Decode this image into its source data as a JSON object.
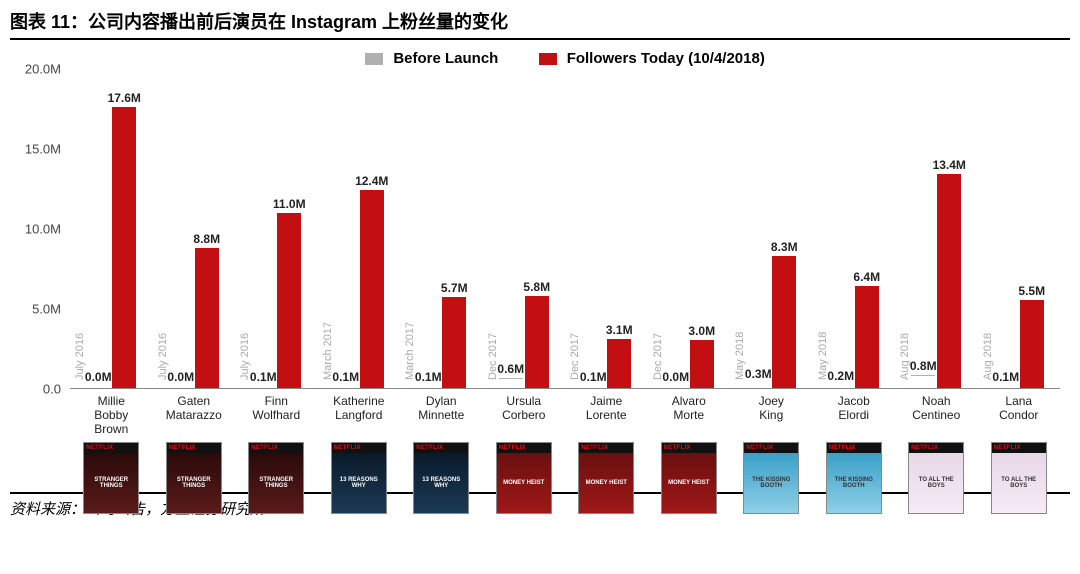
{
  "title": "图表 11：公司内容播出前后演员在 Instagram 上粉丝量的变化",
  "source": "资料来源：公司公告，方正证券研究所",
  "chart": {
    "type": "bar",
    "legend": {
      "before": {
        "label": "Before Launch",
        "color": "#b0b0b0"
      },
      "after": {
        "label": "Followers Today (10/4/2018)",
        "color": "#c40f12"
      }
    },
    "y_axis": {
      "ticks": [
        "0.0",
        "5.0M",
        "10.0M",
        "15.0M",
        "20.0M"
      ],
      "max": 20.0
    },
    "font": {
      "legend_size": 15,
      "tick_size": 13,
      "value_size": 12,
      "xlabel_size": 12
    },
    "background_color": "#ffffff",
    "series": [
      {
        "name": "Millie Bobby Brown",
        "date": "July 2016",
        "before": 0.0,
        "after": 17.6,
        "before_label": "0.0M",
        "after_label": "17.6M",
        "show": "Stranger Things",
        "poster_bg": "linear-gradient(#2b0a0a,#5a1a1a)"
      },
      {
        "name": "Gaten Matarazzo",
        "date": "July 2016",
        "before": 0.0,
        "after": 8.8,
        "before_label": "0.0M",
        "after_label": "8.8M",
        "show": "Stranger Things",
        "poster_bg": "linear-gradient(#2b0a0a,#5a1a1a)"
      },
      {
        "name": "Finn Wolfhard",
        "date": "July 2016",
        "before": 0.1,
        "after": 11.0,
        "before_label": "0.1M",
        "after_label": "11.0M",
        "show": "Stranger Things",
        "poster_bg": "linear-gradient(#2b0a0a,#5a1a1a)"
      },
      {
        "name": "Katherine Langford",
        "date": "March 2017",
        "before": 0.1,
        "after": 12.4,
        "before_label": "0.1M",
        "after_label": "12.4M",
        "show": "13 Reasons Why",
        "poster_bg": "linear-gradient(#091a2a,#1c3a55)"
      },
      {
        "name": "Dylan Minnette",
        "date": "March 2017",
        "before": 0.1,
        "after": 5.7,
        "before_label": "0.1M",
        "after_label": "5.7M",
        "show": "13 Reasons Why",
        "poster_bg": "linear-gradient(#091a2a,#1c3a55)"
      },
      {
        "name": "Ursula Corbero",
        "date": "Dec 2017",
        "before": 0.6,
        "after": 5.8,
        "before_label": "0.6M",
        "after_label": "5.8M",
        "show": "Money Heist",
        "poster_bg": "linear-gradient(#6a0f0f,#a01818)"
      },
      {
        "name": "Jaime Lorente",
        "date": "Dec 2017",
        "before": 0.1,
        "after": 3.1,
        "before_label": "0.1M",
        "after_label": "3.1M",
        "show": "Money Heist",
        "poster_bg": "linear-gradient(#6a0f0f,#a01818)"
      },
      {
        "name": "Alvaro Morte",
        "date": "Dec 2017",
        "before": 0.0,
        "after": 3.0,
        "before_label": "0.0M",
        "after_label": "3.0M",
        "show": "Money Heist",
        "poster_bg": "linear-gradient(#6a0f0f,#a01818)"
      },
      {
        "name": "Joey King",
        "date": "May 2018",
        "before": 0.3,
        "after": 8.3,
        "before_label": "0.3M",
        "after_label": "8.3M",
        "show": "The Kissing Booth",
        "poster_bg": "linear-gradient(#3aa0c8,#8ed0e8)"
      },
      {
        "name": "Jacob Elordi",
        "date": "May 2018",
        "before": 0.2,
        "after": 6.4,
        "before_label": "0.2M",
        "after_label": "6.4M",
        "show": "The Kissing Booth",
        "poster_bg": "linear-gradient(#3aa0c8,#8ed0e8)"
      },
      {
        "name": "Noah Centineo",
        "date": "Aug 2018",
        "before": 0.8,
        "after": 13.4,
        "before_label": "0.8M",
        "after_label": "13.4M",
        "show": "To All the Boys",
        "poster_bg": "linear-gradient(#e8d8e8,#f5eaf5)"
      },
      {
        "name": "Lana Condor",
        "date": "Aug 2018",
        "before": 0.1,
        "after": 5.5,
        "before_label": "0.1M",
        "after_label": "5.5M",
        "show": "To All the Boys",
        "poster_bg": "linear-gradient(#e8d8e8,#f5eaf5)"
      }
    ],
    "poster_brand": "NETFLIX"
  }
}
